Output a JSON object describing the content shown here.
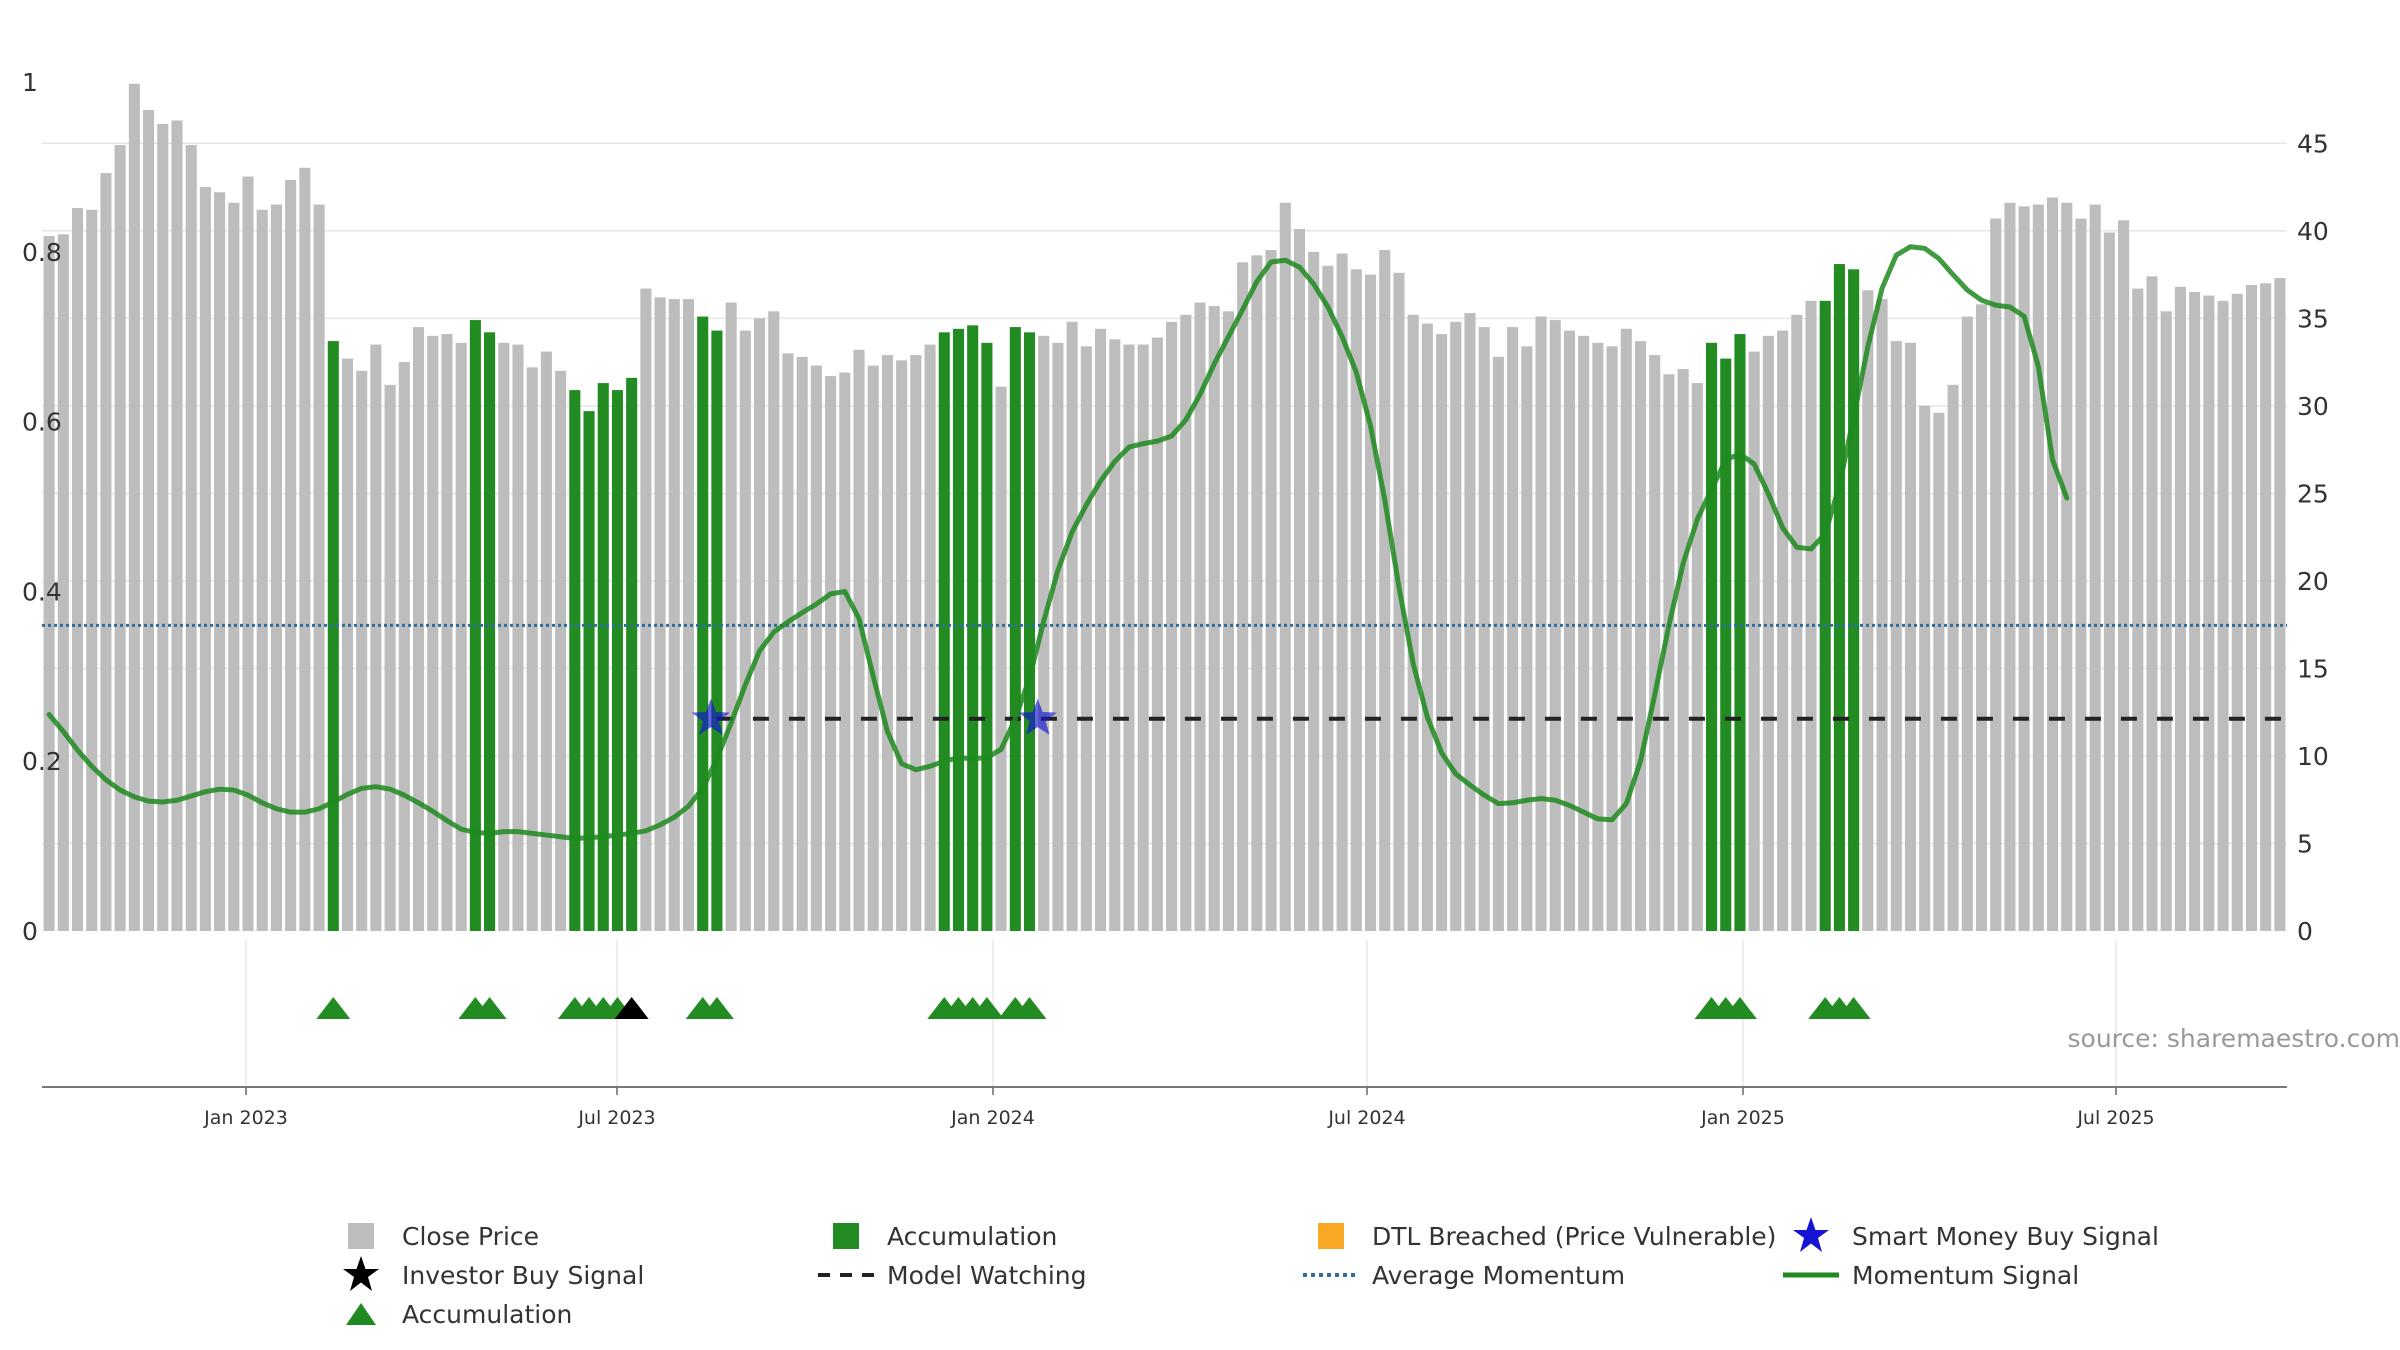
{
  "chart_data": {
    "type": "bar+line",
    "title": "",
    "source": "source: sharemaestro.com",
    "x_tick_labels": [
      "Jan 2023",
      "Jul 2023",
      "Jan 2024",
      "Jul 2024",
      "Jan 2025",
      "Jul 2025"
    ],
    "left_axis": {
      "ticks": [
        "0",
        "0.2",
        "0.4",
        "0.6",
        "0.8",
        "1"
      ],
      "ylim": [
        0,
        1
      ]
    },
    "right_axis": {
      "ticks": [
        "0",
        "5",
        "10",
        "15",
        "20",
        "25",
        "30",
        "35",
        "40",
        "45"
      ],
      "ylim": [
        0,
        48.5
      ]
    },
    "close_price": [
      39.7,
      39.8,
      41.3,
      41.2,
      43.3,
      44.9,
      48.4,
      46.9,
      46.1,
      46.3,
      44.9,
      42.5,
      42.2,
      41.6,
      43.1,
      41.2,
      41.5,
      42.9,
      43.6,
      41.5,
      33.7,
      32.7,
      32.0,
      33.5,
      31.2,
      32.5,
      34.5,
      34.0,
      34.1,
      33.6,
      34.9,
      34.2,
      33.6,
      33.5,
      32.2,
      33.1,
      32.0,
      30.9,
      29.7,
      31.3,
      30.9,
      31.6,
      36.7,
      36.2,
      36.1,
      36.1,
      35.1,
      34.3,
      35.9,
      34.3,
      35.0,
      35.4,
      33.0,
      32.8,
      32.3,
      31.7,
      31.9,
      33.2,
      32.3,
      32.9,
      32.6,
      32.9,
      33.5,
      34.2,
      34.4,
      34.6,
      33.6,
      31.1,
      34.5,
      34.2,
      34.0,
      33.6,
      34.8,
      33.4,
      34.4,
      33.8,
      33.5,
      33.5,
      33.9,
      34.8,
      35.2,
      35.9,
      35.7,
      35.4,
      38.2,
      38.6,
      38.9,
      41.6,
      40.1,
      38.8,
      38.0,
      38.7,
      37.8,
      37.5,
      38.9,
      37.6,
      35.2,
      34.7,
      34.1,
      34.8,
      35.3,
      34.5,
      32.8,
      34.5,
      33.4,
      35.1,
      34.9,
      34.3,
      34.0,
      33.6,
      33.4,
      34.4,
      33.7,
      32.9,
      31.8,
      32.1,
      31.3,
      33.6,
      32.7,
      34.1,
      33.1,
      34.0,
      34.3,
      35.2,
      36.0,
      36.0,
      38.1,
      37.8,
      36.6,
      36.1,
      33.7,
      33.6,
      30.0,
      29.6,
      31.2,
      35.1,
      35.8,
      40.7,
      41.6,
      41.4,
      41.5,
      41.9,
      41.6,
      40.7,
      41.5,
      39.9,
      40.6,
      36.7,
      37.4,
      35.4,
      36.8,
      36.5,
      36.3,
      36.0,
      36.4,
      36.9,
      37.0,
      37.3
    ],
    "accumulation_bars": [
      20,
      30,
      31,
      37,
      38,
      39,
      40,
      41,
      46,
      47,
      63,
      64,
      65,
      66,
      68,
      69,
      117,
      118,
      119,
      125,
      126,
      127
    ],
    "momentum_signal": [
      0.255,
      0.235,
      0.213,
      0.194,
      0.178,
      0.166,
      0.158,
      0.153,
      0.152,
      0.154,
      0.159,
      0.164,
      0.167,
      0.166,
      0.16,
      0.151,
      0.144,
      0.14,
      0.14,
      0.144,
      0.152,
      0.161,
      0.168,
      0.17,
      0.167,
      0.16,
      0.151,
      0.141,
      0.13,
      0.12,
      0.116,
      0.115,
      0.117,
      0.117,
      0.115,
      0.113,
      0.111,
      0.109,
      0.11,
      0.111,
      0.113,
      0.115,
      0.118,
      0.125,
      0.134,
      0.147,
      0.168,
      0.203,
      0.245,
      0.29,
      0.33,
      0.352,
      0.364,
      0.375,
      0.385,
      0.397,
      0.4,
      0.368,
      0.3,
      0.235,
      0.197,
      0.19,
      0.194,
      0.2,
      0.204,
      0.203,
      0.204,
      0.214,
      0.25,
      0.298,
      0.365,
      0.425,
      0.47,
      0.502,
      0.53,
      0.553,
      0.57,
      0.574,
      0.577,
      0.583,
      0.602,
      0.632,
      0.668,
      0.7,
      0.732,
      0.765,
      0.788,
      0.79,
      0.782,
      0.762,
      0.735,
      0.7,
      0.658,
      0.595,
      0.508,
      0.405,
      0.315,
      0.252,
      0.21,
      0.185,
      0.172,
      0.16,
      0.15,
      0.151,
      0.154,
      0.156,
      0.154,
      0.148,
      0.14,
      0.132,
      0.131,
      0.15,
      0.2,
      0.278,
      0.36,
      0.433,
      0.485,
      0.52,
      0.555,
      0.562,
      0.55,
      0.515,
      0.475,
      0.452,
      0.45,
      0.468,
      0.525,
      0.605,
      0.688,
      0.757,
      0.796,
      0.806,
      0.804,
      0.792,
      0.773,
      0.755,
      0.743,
      0.737,
      0.735,
      0.724,
      0.665,
      0.555,
      0.51
    ],
    "average_momentum": 0.36,
    "model_watching": {
      "from_index": 47,
      "value": 0.25
    },
    "smart_money_buy_signal": [
      47,
      70
    ],
    "accumulation_triangles": [
      20,
      30,
      31,
      37,
      38,
      39,
      40,
      46,
      47,
      63,
      64,
      65,
      66,
      68,
      69,
      117,
      118,
      119,
      125,
      126,
      127
    ],
    "investor_buy_signal": [
      41
    ],
    "colors": {
      "close_price": "#bdbdbd",
      "accumulation": "#228b22",
      "dtl_breached": "#f9a825",
      "smart_money": "#1414d2",
      "investor_buy": "#000000",
      "model_watching": "#222222",
      "average_momentum": "#2f6fa0",
      "momentum_signal": "#1f8a1f"
    }
  },
  "legend": [
    {
      "key": "close_price",
      "label": "Close Price",
      "icon": "square"
    },
    {
      "key": "accumulation",
      "label": "Accumulation",
      "icon": "square"
    },
    {
      "key": "dtl_breached",
      "label": "DTL Breached (Price Vulnerable)",
      "icon": "square"
    },
    {
      "key": "smart_money",
      "label": "Smart Money Buy Signal",
      "icon": "star"
    },
    {
      "key": "investor_buy",
      "label": "Investor Buy Signal",
      "icon": "star"
    },
    {
      "key": "model_watching",
      "label": "Model Watching",
      "icon": "dash"
    },
    {
      "key": "average_momentum",
      "label": "Average Momentum",
      "icon": "dotted"
    },
    {
      "key": "momentum_signal",
      "label": "Momentum Signal",
      "icon": "line"
    },
    {
      "key": "accumulation",
      "label": "Accumulation",
      "icon": "triangle"
    }
  ]
}
